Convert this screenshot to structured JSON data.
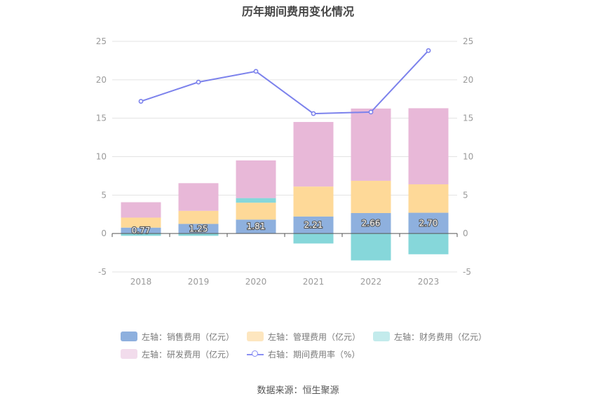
{
  "chart_data": {
    "type": "bar",
    "stacked": true,
    "title": "历年期间费用变化情况",
    "categories": [
      "2018",
      "2019",
      "2020",
      "2021",
      "2022",
      "2023"
    ],
    "left_axis": {
      "ylim": [
        -5,
        25
      ],
      "ticks": [
        "-5",
        "0",
        "5",
        "10",
        "15",
        "20",
        "25"
      ]
    },
    "right_axis": {
      "ylim": [
        -5,
        25
      ],
      "ticks": [
        "-5",
        "0",
        "5",
        "10",
        "15",
        "20",
        "25"
      ]
    },
    "series": [
      {
        "name": "左轴：销售费用（亿元）",
        "axis": "left",
        "kind": "bar",
        "color": "#8eb0de",
        "values": [
          0.77,
          1.25,
          1.81,
          2.21,
          2.66,
          2.7
        ],
        "labels": [
          "0.77",
          "1.25",
          "1.81",
          "2.21",
          "2.66",
          "2.70"
        ]
      },
      {
        "name": "左轴：管理费用（亿元）",
        "axis": "left",
        "kind": "bar",
        "color": "#fed998",
        "values": [
          1.3,
          1.7,
          2.2,
          3.9,
          4.2,
          3.7
        ]
      },
      {
        "name": "左轴：财务费用（亿元）",
        "axis": "left",
        "kind": "bar",
        "color": "#86d7da",
        "values": [
          -0.3,
          -0.3,
          0.6,
          -1.3,
          -3.5,
          -2.7
        ]
      },
      {
        "name": "左轴：研发费用（亿元）",
        "axis": "left",
        "kind": "bar",
        "color": "#e8b8d8",
        "values": [
          2.0,
          3.6,
          4.9,
          8.4,
          9.4,
          9.9
        ]
      },
      {
        "name": "右轴：期间费用率（%）",
        "axis": "right",
        "kind": "line",
        "color": "#7c82ec",
        "values": [
          17.2,
          19.7,
          21.1,
          15.6,
          15.8,
          23.8
        ]
      }
    ],
    "grid": true
  },
  "legend_rows": [
    [
      {
        "label": "左轴：销售费用（亿元）",
        "swatch": "#8eb0de",
        "kind": "box"
      },
      {
        "label": "左轴：管理费用（亿元）",
        "swatch": "#fde6bf",
        "kind": "box"
      },
      {
        "label": "左轴：财务费用（亿元）",
        "swatch": "#c3ebec",
        "kind": "box"
      }
    ],
    [
      {
        "label": "左轴：研发费用（亿元）",
        "swatch": "#f2dcec",
        "kind": "box"
      },
      {
        "label": "右轴：期间费用率（%）",
        "swatch": "#8a8ff3",
        "kind": "line"
      }
    ]
  ],
  "source": "数据来源：恒生聚源"
}
